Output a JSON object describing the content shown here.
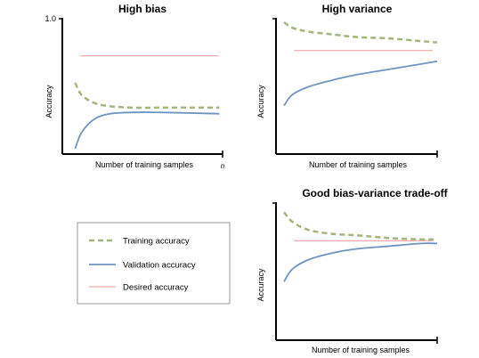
{
  "colors": {
    "training": "#a3b57a",
    "validation": "#6f95c0",
    "desired": "#ee9999",
    "axis": "#000000",
    "legend_border": "#999999"
  },
  "legend": {
    "items": [
      {
        "label": "Training accuracy",
        "style": "dashed"
      },
      {
        "label": "Validation accuracy",
        "style": "solid"
      },
      {
        "label": "Desired accuracy",
        "style": "thin"
      }
    ]
  },
  "chart_data": [
    {
      "type": "line",
      "title": "High bias",
      "xlabel": "Number of training samples",
      "xend_label": "n",
      "ylabel": "Accuracy",
      "ytick_labels": [
        "1.0"
      ],
      "ylim": [
        0,
        1.0
      ],
      "xlim": [
        0,
        1
      ],
      "desired": 0.73,
      "series": [
        {
          "name": "Training accuracy",
          "x": [
            0.08,
            0.12,
            0.2,
            0.3,
            0.45,
            0.6,
            0.8,
            0.98
          ],
          "y": [
            0.53,
            0.44,
            0.38,
            0.355,
            0.345,
            0.345,
            0.345,
            0.345
          ]
        },
        {
          "name": "Validation accuracy",
          "x": [
            0.08,
            0.12,
            0.2,
            0.3,
            0.45,
            0.6,
            0.8,
            0.98
          ],
          "y": [
            0.04,
            0.16,
            0.26,
            0.3,
            0.31,
            0.31,
            0.305,
            0.3
          ]
        }
      ]
    },
    {
      "type": "line",
      "title": "High variance",
      "xlabel": "Number of training samples",
      "ylabel": "Accuracy",
      "ylim": [
        0,
        1.0
      ],
      "xlim": [
        0,
        1
      ],
      "desired": 0.77,
      "series": [
        {
          "name": "Training accuracy",
          "x": [
            0.05,
            0.1,
            0.2,
            0.35,
            0.5,
            0.7,
            0.9,
            1.0
          ],
          "y": [
            0.98,
            0.94,
            0.91,
            0.89,
            0.87,
            0.86,
            0.84,
            0.83
          ]
        },
        {
          "name": "Validation accuracy",
          "x": [
            0.05,
            0.1,
            0.2,
            0.35,
            0.5,
            0.7,
            0.9,
            1.0
          ],
          "y": [
            0.36,
            0.44,
            0.5,
            0.55,
            0.59,
            0.63,
            0.67,
            0.69
          ]
        }
      ]
    },
    {
      "type": "line",
      "title": "Good bias-variance trade-off",
      "xlabel": "Number of training samples",
      "ylabel": "Accuracy",
      "ylim": [
        0,
        1.0
      ],
      "xlim": [
        0,
        1
      ],
      "desired": 0.73,
      "series": [
        {
          "name": "Training accuracy",
          "x": [
            0.05,
            0.1,
            0.2,
            0.35,
            0.5,
            0.7,
            0.9,
            1.0
          ],
          "y": [
            0.94,
            0.87,
            0.81,
            0.78,
            0.77,
            0.75,
            0.74,
            0.74
          ]
        },
        {
          "name": "Validation accuracy",
          "x": [
            0.05,
            0.1,
            0.2,
            0.35,
            0.5,
            0.7,
            0.9,
            1.0
          ],
          "y": [
            0.43,
            0.52,
            0.59,
            0.64,
            0.67,
            0.69,
            0.71,
            0.71
          ]
        }
      ]
    }
  ]
}
